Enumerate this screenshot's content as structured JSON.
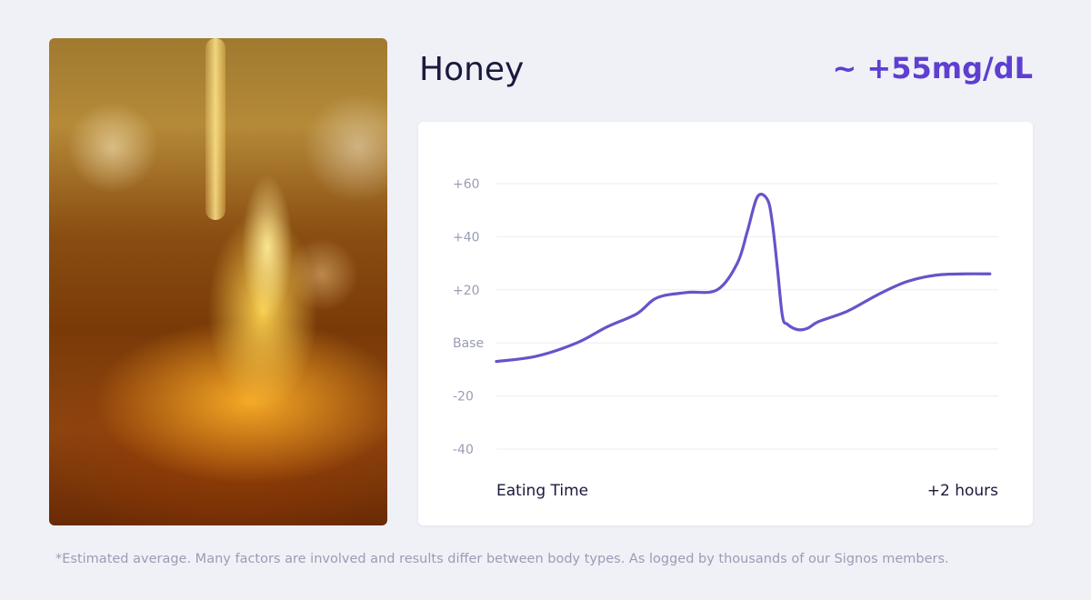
{
  "food": {
    "name": "Honey",
    "glucose_change": "~ +55mg/dL"
  },
  "photo": {
    "subject": "honey dripping from dipper"
  },
  "chart_data": {
    "type": "line",
    "title": "",
    "xlabel": "",
    "ylabel": "",
    "x_start_label": "Eating Time",
    "x_end_label": "+2 hours",
    "y_ticks": [
      {
        "value": 60,
        "label": "+60"
      },
      {
        "value": 40,
        "label": "+40"
      },
      {
        "value": 20,
        "label": "+20"
      },
      {
        "value": 0,
        "label": "Base"
      },
      {
        "value": -20,
        "label": "-20"
      },
      {
        "value": -40,
        "label": "-40"
      }
    ],
    "ylim": [
      -40,
      60
    ],
    "xlim": [
      0,
      120
    ],
    "grid": true,
    "line_color": "#6a52c9",
    "series": [
      {
        "x": [
          0,
          9.6,
          19.2,
          26.4,
          33.6,
          38.4,
          45.6,
          52.8,
          57.6,
          60,
          62.4,
          64.8,
          66,
          67.2,
          68.4,
          69.6,
          72,
          74.4,
          77,
          84,
          91,
          98,
          105,
          112,
          118
        ],
        "y": [
          -7,
          -5,
          0,
          6,
          11,
          17,
          19,
          20,
          30,
          42,
          55,
          54,
          45,
          28,
          10,
          7,
          5,
          5.5,
          8,
          12,
          18,
          23,
          25.5,
          26,
          26
        ]
      }
    ]
  },
  "footnote": "*Estimated average. Many factors are involved and results differ between body types. As logged by thousands of our Signos members."
}
